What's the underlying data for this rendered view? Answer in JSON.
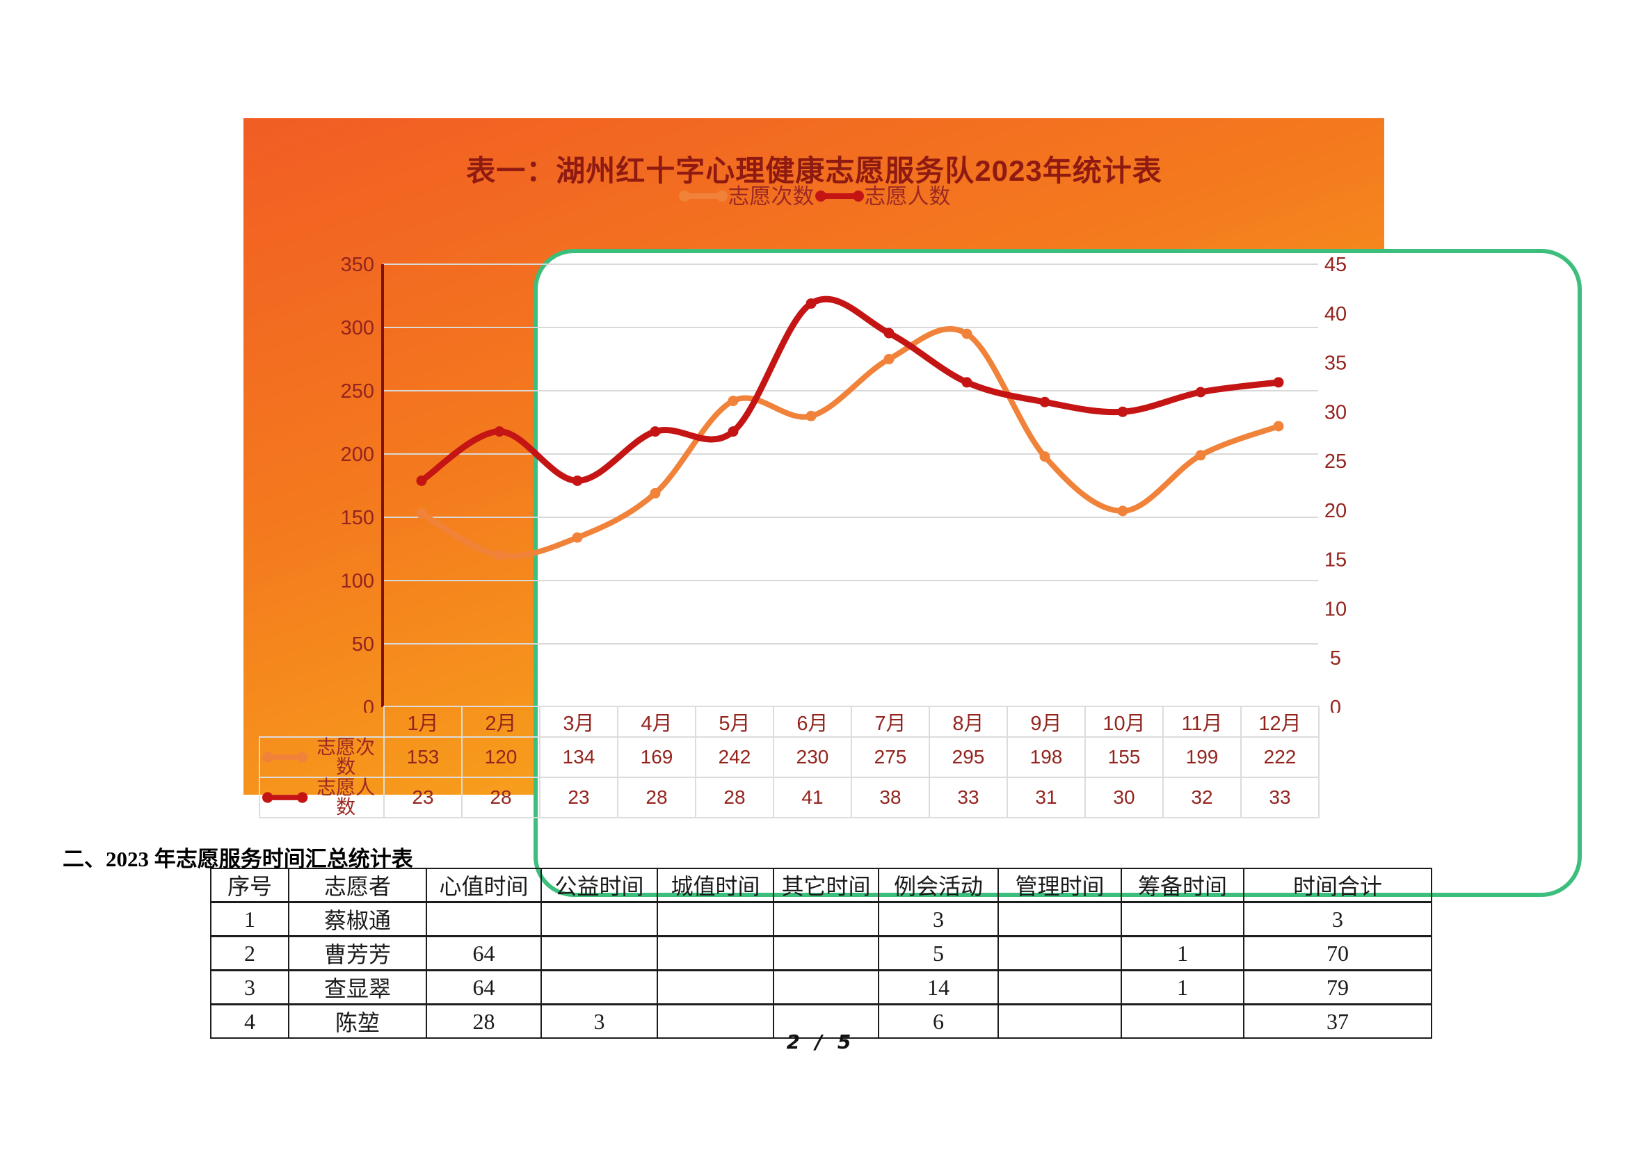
{
  "chart_data": {
    "type": "line",
    "title": "表一：湖州红十字心理健康志愿服务队2023年统计表",
    "categories": [
      "1月",
      "2月",
      "3月",
      "4月",
      "5月",
      "6月",
      "7月",
      "8月",
      "9月",
      "10月",
      "11月",
      "12月"
    ],
    "series": [
      {
        "name": "志愿次数",
        "axis": "left",
        "color": "#F0823A",
        "values": [
          153,
          120,
          134,
          169,
          242,
          230,
          275,
          295,
          198,
          155,
          199,
          222
        ]
      },
      {
        "name": "志愿人数",
        "axis": "right",
        "color": "#C41414",
        "values": [
          23,
          28,
          23,
          28,
          28,
          41,
          38,
          33,
          31,
          30,
          32,
          33
        ]
      }
    ],
    "left_axis": {
      "min": 0,
      "max": 350,
      "step": 50,
      "ticks": [
        0,
        50,
        100,
        150,
        200,
        250,
        300,
        350
      ]
    },
    "right_axis": {
      "min": 0,
      "max": 45,
      "step": 5,
      "ticks": [
        0,
        5,
        10,
        15,
        20,
        25,
        30,
        35,
        40,
        45
      ]
    },
    "grid": true,
    "smooth": true,
    "legend_position": "top",
    "text_color": "#93241E",
    "axis_line_color": "#7D1311",
    "grid_color": "#D9D9D9",
    "card_border_color": "#3CBE7C"
  },
  "section2": {
    "heading": "二、2023 年志愿服务时间汇总统计表",
    "table": {
      "headers": [
        "序号",
        "志愿者",
        "心值时间",
        "公益时间",
        "城值时间",
        "其它时间",
        "例会活动",
        "管理时间",
        "筹备时间",
        "时间合计"
      ],
      "rows": [
        [
          "1",
          "蔡椒通",
          "",
          "",
          "",
          "",
          "3",
          "",
          "",
          "3"
        ],
        [
          "2",
          "曹芳芳",
          "64",
          "",
          "",
          "",
          "5",
          "",
          "1",
          "70"
        ],
        [
          "3",
          "查显翠",
          "64",
          "",
          "",
          "",
          "14",
          "",
          "1",
          "79"
        ],
        [
          "4",
          "陈堃",
          "28",
          "3",
          "",
          "",
          "6",
          "",
          "",
          "37"
        ]
      ]
    }
  },
  "footer": {
    "page_label": "2 / 5"
  }
}
